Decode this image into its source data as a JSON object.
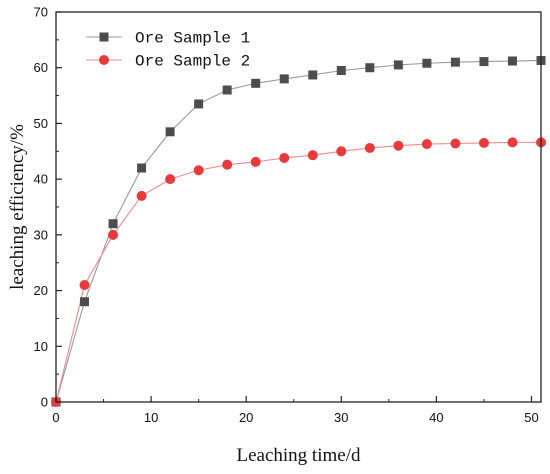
{
  "chart_data": {
    "type": "line",
    "xlabel": "Leaching time/d",
    "ylabel": "leaching efficiency/%",
    "xlim": [
      0,
      51
    ],
    "ylim": [
      0,
      70
    ],
    "xticks": [
      0,
      10,
      20,
      30,
      40,
      50
    ],
    "yticks": [
      0,
      10,
      20,
      30,
      40,
      50,
      60,
      70
    ],
    "grid": false,
    "legend_position": "top-left",
    "series": [
      {
        "name": "Ore Sample 1",
        "marker": "square",
        "marker_color": "#4d4d4d",
        "line_color": "#9a9a9a",
        "x": [
          0,
          3,
          6,
          9,
          12,
          15,
          18,
          21,
          24,
          27,
          30,
          33,
          36,
          39,
          42,
          45,
          48,
          51
        ],
        "y": [
          0,
          18,
          32,
          42,
          48.5,
          53.5,
          56,
          57.2,
          58,
          58.7,
          59.5,
          60,
          60.5,
          60.8,
          61,
          61.1,
          61.2,
          61.3
        ]
      },
      {
        "name": "Ore Sample 2",
        "marker": "circle",
        "marker_color": "#e8393c",
        "line_color": "#f08a8c",
        "x": [
          0,
          3,
          6,
          9,
          12,
          15,
          18,
          21,
          24,
          27,
          30,
          33,
          36,
          39,
          42,
          45,
          48,
          51
        ],
        "y": [
          0,
          21,
          30,
          37,
          40,
          41.6,
          42.6,
          43.1,
          43.8,
          44.3,
          45,
          45.6,
          46,
          46.3,
          46.4,
          46.5,
          46.6,
          46.6
        ]
      }
    ]
  }
}
